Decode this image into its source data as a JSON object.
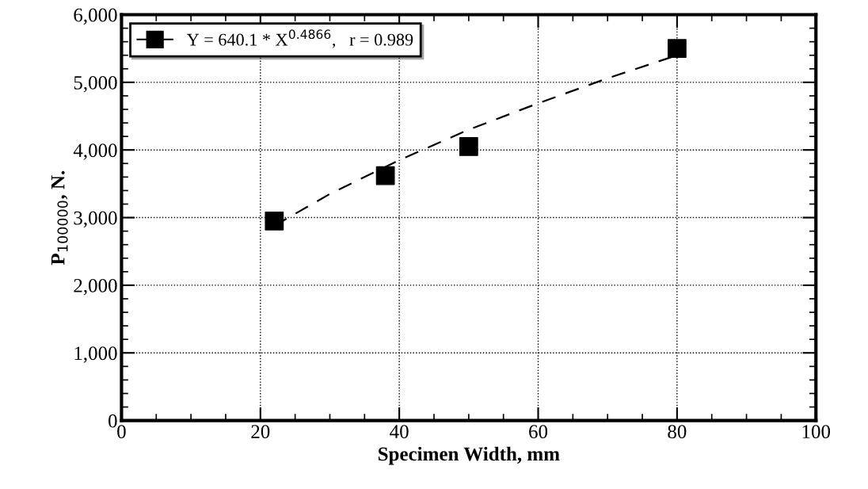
{
  "chart_data": {
    "type": "scatter",
    "xlabel": "Specimen Width, mm",
    "ylabel": "P$_{100000}$, N.",
    "xlim": [
      0,
      100
    ],
    "xticks": [
      0,
      20,
      40,
      60,
      80,
      100
    ],
    "ylim": [
      0,
      6000
    ],
    "yticks": [
      {
        "value": 0,
        "label": "0"
      },
      {
        "value": 1000,
        "label": "1,000"
      },
      {
        "value": 2000,
        "label": "2,000"
      },
      {
        "value": 3000,
        "label": "3,000"
      },
      {
        "value": 4000,
        "label": "4,000"
      },
      {
        "value": 5000,
        "label": "5,000"
      },
      {
        "value": 6000,
        "label": "6,000"
      }
    ],
    "grid": true,
    "legend": "top left",
    "marker": "square",
    "series": [
      {
        "name": "Y = 640.1 * X$^{0.4866}$,   r = 0.989",
        "color": "#000000",
        "x": [
          22,
          38,
          50,
          80
        ],
        "values": [
          2950,
          3620,
          4050,
          5500
        ]
      },
      {
        "type": "line",
        "color": "#000000",
        "line_style": "dashed",
        "marker": "none",
        "x": [
          22,
          30,
          40,
          50,
          60,
          70,
          80
        ],
        "values": [
          2880,
          3350,
          3850,
          4300,
          4690,
          5060,
          5400
        ]
      }
    ]
  }
}
